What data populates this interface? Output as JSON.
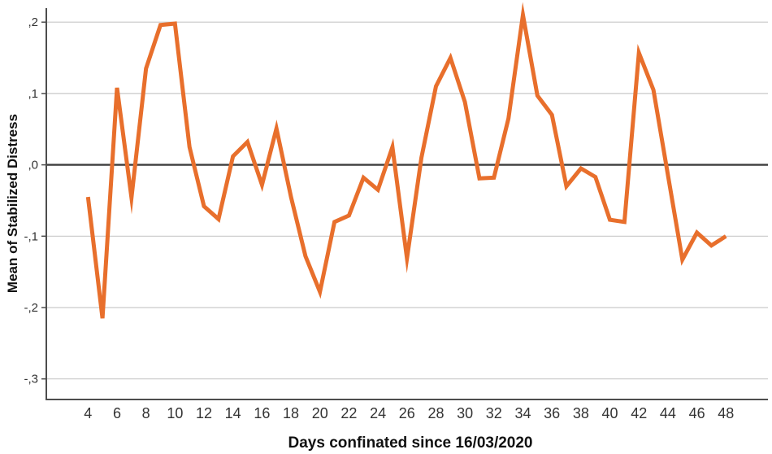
{
  "chart_data": {
    "type": "line",
    "title": "",
    "xlabel": "Days confinated since 16/03/2020",
    "ylabel": "Mean of Stabilized Distress",
    "x": [
      4,
      5,
      6,
      7,
      8,
      9,
      10,
      11,
      12,
      13,
      14,
      15,
      16,
      17,
      18,
      19,
      20,
      21,
      22,
      23,
      24,
      25,
      26,
      27,
      28,
      29,
      30,
      31,
      32,
      33,
      34,
      35,
      36,
      37,
      38,
      39,
      40,
      41,
      42,
      43,
      44,
      45,
      46,
      47,
      48
    ],
    "y": [
      -0.045,
      -0.215,
      0.108,
      -0.046,
      0.135,
      0.196,
      0.198,
      0.025,
      -0.058,
      -0.076,
      0.012,
      0.032,
      -0.028,
      0.051,
      -0.045,
      -0.128,
      -0.178,
      -0.08,
      -0.071,
      -0.018,
      -0.035,
      0.025,
      -0.131,
      0.01,
      0.11,
      0.15,
      0.088,
      -0.019,
      -0.018,
      0.065,
      0.21,
      0.097,
      0.07,
      -0.03,
      -0.005,
      -0.017,
      -0.077,
      -0.08,
      0.157,
      0.105,
      -0.014,
      -0.133,
      -0.095,
      -0.113,
      -0.1
    ],
    "x_tick_labels": [
      "4",
      "6",
      "8",
      "10",
      "12",
      "14",
      "16",
      "18",
      "20",
      "22",
      "24",
      "26",
      "28",
      "30",
      "32",
      "34",
      "36",
      "38",
      "40",
      "42",
      "44",
      "46",
      "48"
    ],
    "x_tick_values": [
      4,
      6,
      8,
      10,
      12,
      14,
      16,
      18,
      20,
      22,
      24,
      26,
      28,
      30,
      32,
      34,
      36,
      38,
      40,
      42,
      44,
      46,
      48
    ],
    "y_ticks": [
      {
        "label": ",2",
        "value": 0.2
      },
      {
        "label": ",1",
        "value": 0.1
      },
      {
        "label": ",0",
        "value": 0.0
      },
      {
        "label": "-,1",
        "value": -0.1
      },
      {
        "label": "-,2",
        "value": -0.2
      },
      {
        "label": "-,3",
        "value": -0.3
      }
    ],
    "ylim": [
      -0.33,
      0.22
    ],
    "xlim": [
      1.2,
      50.9
    ],
    "grid": "horizontal-only",
    "legend": "none",
    "colors": {
      "line": "#e86f2c",
      "gridline": "#c9c9c9",
      "zero_line": "#3d3d3d",
      "axis_line": "#4d4d4d",
      "tick_text": "#333333",
      "title_text": "#111111",
      "background": "#ffffff"
    }
  }
}
